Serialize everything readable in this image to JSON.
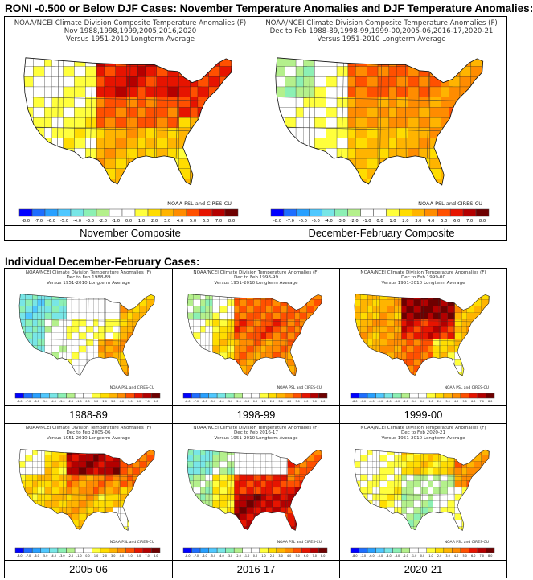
{
  "title": "RONI -0.500 or Below DJF Cases: November Temperature Anomalies and DJF Temperature Anomalies:",
  "subheading": "Individual December-February Cases:",
  "legend": {
    "ticks": [
      "-8.0",
      "-7.0",
      "-6.0",
      "-5.0",
      "-4.0",
      "-3.0",
      "-2.0",
      "-1.0",
      "0.0",
      "1.0",
      "2.0",
      "3.0",
      "4.0",
      "5.0",
      "6.0",
      "7.0",
      "8.0"
    ],
    "colors": [
      "#0000ff",
      "#1e6eff",
      "#28a0ff",
      "#50c8ff",
      "#78e6e6",
      "#8cf0b4",
      "#b4f08c",
      "#ffffff",
      "#ffffff",
      "#ffff3c",
      "#ffdc00",
      "#ffb400",
      "#ff8c00",
      "#ff5000",
      "#e61400",
      "#b40000",
      "#6e0000"
    ]
  },
  "credit": "NOAA PSL and CIRES-CU",
  "panels": [
    {
      "id": "nov",
      "header": [
        "NOAA/NCEI Climate Division Composite Temperature Anomalies (F)",
        "Nov  1988,1998,1999,2005,2016,2020",
        "Versus 1951-2010 Longterm Average"
      ],
      "caption": "November Composite",
      "anomaly": {
        "west": 1.0,
        "northwest": 0.5,
        "southwest": 1.5,
        "north-central": 6.5,
        "central": 5.0,
        "south-central": 3.5,
        "northeast": 6.0,
        "southeast": 3.0,
        "florida": 2.5
      }
    },
    {
      "id": "djf",
      "header": [
        "NOAA/NCEI Climate Division Composite Temperature Anomalies (F)",
        "Dec to Feb  1988-89,1998-99,1999-00,2005-06,2016-17,2020-21",
        "Versus 1951-2010 Longterm Average"
      ],
      "caption": "December-February Composite",
      "anomaly": {
        "west": 0.5,
        "northwest": -1.5,
        "southwest": 1.0,
        "north-central": 5.0,
        "central": 4.0,
        "south-central": 3.0,
        "northeast": 4.5,
        "southeast": 3.5,
        "florida": 3.0
      }
    },
    {
      "id": "1988-89",
      "header": [
        "NOAA/NCEI Climate Division Temperature Anomalies (F)",
        "Dec to Feb 1988-89",
        "Versus 1951-2010 Longterm Average"
      ],
      "caption": "1988-89",
      "anomaly": {
        "west": -3.0,
        "northwest": -3.5,
        "southwest": -0.5,
        "north-central": 0.0,
        "central": 1.0,
        "south-central": 0.5,
        "northeast": 3.5,
        "southeast": 4.0,
        "florida": 3.5
      }
    },
    {
      "id": "1998-99",
      "header": [
        "NOAA/NCEI Climate Division Temperature Anomalies (F)",
        "Dec to Feb 1998-99",
        "Versus 1951-2010 Longterm Average"
      ],
      "caption": "1998-99",
      "anomaly": {
        "west": 0.5,
        "northwest": -1.5,
        "southwest": 2.5,
        "north-central": 5.0,
        "central": 5.5,
        "south-central": 4.5,
        "northeast": 5.0,
        "southeast": 4.5,
        "florida": 4.0
      }
    },
    {
      "id": "1999-00",
      "header": [
        "NOAA/NCEI Climate Division Temperature Anomalies (F)",
        "Dec to Feb 1999-00",
        "Versus 1951-2010 Longterm Average"
      ],
      "caption": "1999-00",
      "anomaly": {
        "west": 3.5,
        "northwest": 3.0,
        "southwest": 4.0,
        "north-central": 8.0,
        "central": 6.5,
        "south-central": 5.0,
        "northeast": 3.5,
        "southeast": 2.5,
        "florida": 1.0
      }
    },
    {
      "id": "2005-06",
      "header": [
        "NOAA/NCEI Climate Division Temperature Anomalies (F)",
        "Dec to Feb 2005-06",
        "Versus 1951-2010 Longterm Average"
      ],
      "caption": "2005-06",
      "anomaly": {
        "west": 2.5,
        "northwest": 0.5,
        "southwest": 3.0,
        "north-central": 7.5,
        "central": 4.5,
        "south-central": 3.5,
        "northeast": 5.0,
        "southeast": 2.5,
        "florida": 0.5
      }
    },
    {
      "id": "2016-17",
      "header": [
        "NOAA/NCEI Climate Division Temperature Anomalies (F)",
        "Dec to Feb 2016-17",
        "Versus 1951-2010 Longterm Average"
      ],
      "caption": "2016-17",
      "anomaly": {
        "west": -1.5,
        "northwest": -3.0,
        "southwest": 2.0,
        "north-central": 0.0,
        "central": 6.0,
        "south-central": 7.5,
        "northeast": 5.5,
        "southeast": 7.0,
        "florida": 6.5
      }
    },
    {
      "id": "2020-21",
      "header": [
        "NOAA/NCEI Climate Division Temperature Anomalies (F)",
        "Dec to Feb 2020-21",
        "Versus 1951-2010 Longterm Average"
      ],
      "caption": "2020-21",
      "anomaly": {
        "west": 1.0,
        "northwest": 0.5,
        "southwest": 1.5,
        "north-central": 2.5,
        "central": -1.0,
        "south-central": -1.5,
        "northeast": 4.5,
        "southeast": 0.5,
        "florida": 1.0
      }
    }
  ]
}
